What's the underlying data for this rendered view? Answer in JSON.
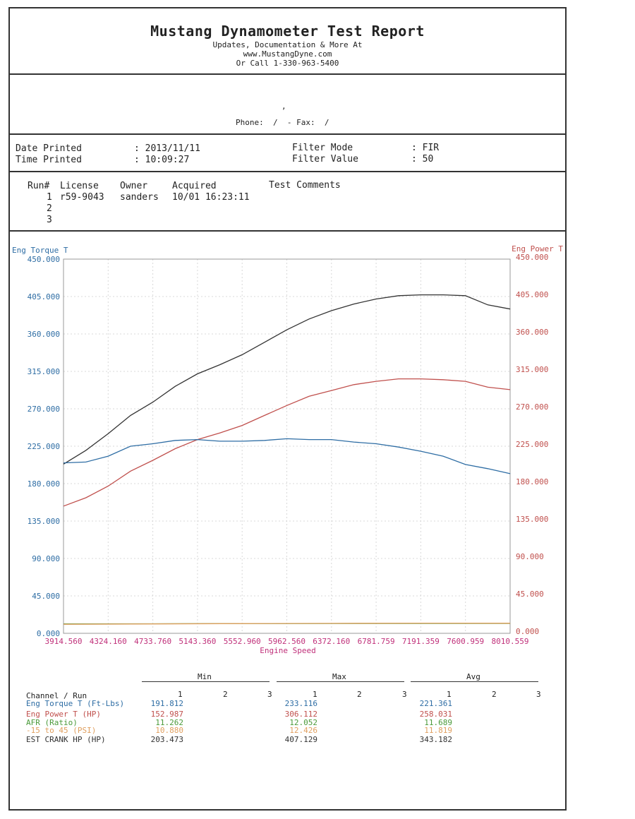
{
  "header": {
    "title": "Mustang Dynamometer Test Report",
    "line1": "Updates, Documentation & More At",
    "line2": "www.MustangDyne.com",
    "line3": "Or Call 1-330-963-5400"
  },
  "contact": {
    "comma": ",",
    "phone_line": "Phone:  /  - Fax:  /"
  },
  "info": {
    "date_label": "Date Printed",
    "date_value": ": 2013/11/11",
    "time_label": "Time Printed",
    "time_value": ": 10:09:27",
    "filter_mode_label": "Filter Mode",
    "filter_mode_value": ": FIR",
    "filter_value_label": "Filter Value",
    "filter_value_value": ": 50"
  },
  "runs": {
    "headers": [
      "Run#",
      "License",
      "Owner",
      "Acquired",
      "Test Comments"
    ],
    "rows": [
      {
        "run": "1",
        "license": "r59-9043",
        "owner": "sanders",
        "acquired": "10/01 16:23:11",
        "comments": ""
      },
      {
        "run": "2",
        "license": "",
        "owner": "",
        "acquired": "",
        "comments": ""
      },
      {
        "run": "3",
        "license": "",
        "owner": "",
        "acquired": "",
        "comments": ""
      }
    ]
  },
  "colors": {
    "torque": "#2e6da4",
    "power": "#c0504d",
    "afr": "#4a9a3a",
    "psi": "#e0a060",
    "esthp": "#333333",
    "xaxis": "#c0307a"
  },
  "chart_data": {
    "type": "line",
    "xlabel": "Engine Speed",
    "ylabel_left": "Eng Torque T",
    "ylabel_right": "Eng Power T",
    "xlim": [
      3914.56,
      8010.559
    ],
    "ylim": [
      0,
      450
    ],
    "x_ticks": [
      "3914.560",
      "4324.160",
      "4733.760",
      "5143.360",
      "5552.960",
      "5962.560",
      "6372.160",
      "6781.759",
      "7191.359",
      "7600.959",
      "8010.559"
    ],
    "y_ticks": [
      "0.000",
      "45.000",
      "90.000",
      "135.000",
      "180.000",
      "225.000",
      "270.000",
      "315.000",
      "360.000",
      "405.000",
      "450.000"
    ],
    "grid": true,
    "series": [
      {
        "name": "EST CRANK HP",
        "x": [
          3915,
          4120,
          4324,
          4529,
          4734,
          4939,
          5143,
          5348,
          5553,
          5758,
          5963,
          6167,
          6372,
          6577,
          6782,
          6987,
          7191,
          7396,
          7601,
          7806,
          8011
        ],
        "y": [
          203.5,
          220,
          240,
          262,
          278,
          297,
          312,
          323,
          335,
          350,
          365,
          378,
          388,
          396,
          402,
          406,
          407,
          407,
          406,
          395,
          390
        ]
      },
      {
        "name": "Eng Power T",
        "x": [
          3915,
          4120,
          4324,
          4529,
          4734,
          4939,
          5143,
          5348,
          5553,
          5758,
          5963,
          6167,
          6372,
          6577,
          6782,
          6987,
          7191,
          7396,
          7601,
          7806,
          8011
        ],
        "y": [
          153,
          163,
          177,
          195,
          208,
          222,
          233,
          241,
          250,
          262,
          274,
          285,
          292,
          299,
          303,
          306,
          306,
          305,
          303,
          296,
          293
        ]
      },
      {
        "name": "Eng Torque T",
        "x": [
          3915,
          4120,
          4324,
          4529,
          4734,
          4939,
          5143,
          5348,
          5553,
          5758,
          5963,
          6167,
          6372,
          6577,
          6782,
          6987,
          7191,
          7396,
          7601,
          7806,
          8011
        ],
        "y": [
          205,
          206,
          213,
          225,
          228,
          232,
          233,
          231,
          231,
          232,
          234,
          233,
          233,
          230,
          228,
          224,
          219,
          213,
          203,
          198,
          192
        ]
      },
      {
        "name": "AFR",
        "x": [
          3915,
          4734,
          5553,
          6372,
          7191,
          8011
        ],
        "y": [
          11.3,
          11.5,
          11.7,
          11.8,
          11.9,
          11.9
        ]
      },
      {
        "name": "-15 to 45",
        "x": [
          3915,
          4734,
          5553,
          6372,
          7191,
          8011
        ],
        "y": [
          10.9,
          11.3,
          11.7,
          12.0,
          12.2,
          12.1
        ]
      }
    ]
  },
  "stats": {
    "group_labels": [
      "Min",
      "Max",
      "Avg"
    ],
    "channel_header": "Channel / Run",
    "run_numbers": [
      "1",
      "2",
      "3"
    ],
    "rows": [
      {
        "channel": "Eng Torque T (Ft-Lbs)",
        "min": "191.812",
        "max": "233.116",
        "avg": "221.361",
        "color": "#2e6da4"
      },
      {
        "channel": "Eng Power T (HP)",
        "min": "152.987",
        "max": "306.112",
        "avg": "258.031",
        "color": "#c0504d"
      },
      {
        "channel": "AFR (Ratio)",
        "min": "11.262",
        "max": "12.052",
        "avg": "11.689",
        "color": "#4a9a3a"
      },
      {
        "channel": "-15 to 45 (PSI)",
        "min": "10.880",
        "max": "12.426",
        "avg": "11.819",
        "color": "#e0a060"
      },
      {
        "channel": "EST CRANK HP (HP)",
        "min": "203.473",
        "max": "407.129",
        "avg": "343.182",
        "color": "#333333"
      }
    ]
  }
}
